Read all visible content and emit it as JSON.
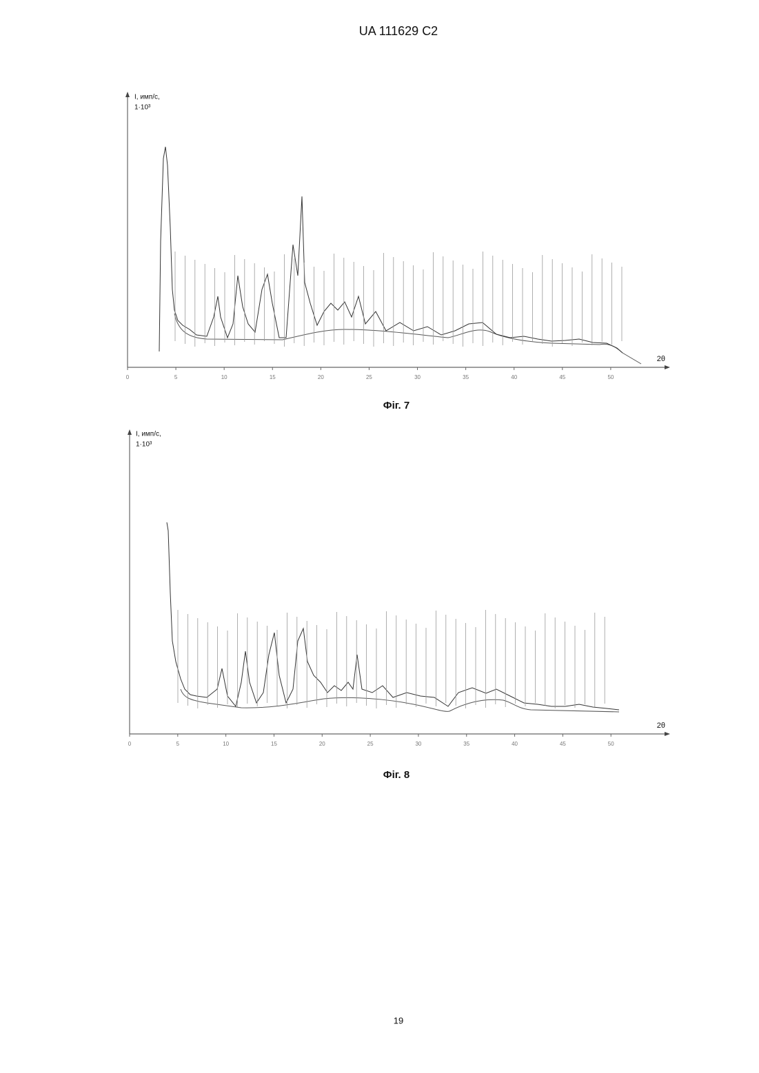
{
  "header": "UA   111629   C2",
  "figures": [
    {
      "chart_data": {
        "type": "line",
        "y_label": "I, имп/с,",
        "y_unit": "1·10³",
        "x_label": "2θ",
        "xlim": [
          0,
          56
        ],
        "xticks": [
          0,
          5,
          10,
          15,
          20,
          25,
          30,
          35,
          40,
          45,
          50
        ]
      },
      "caption": "Фіг. 7"
    },
    {
      "chart_data": {
        "type": "line",
        "y_label": "I, имп/с,",
        "y_unit": "1·10³",
        "x_label": "2θ",
        "xlim": [
          0,
          56
        ],
        "xticks": [
          0,
          5,
          10,
          15,
          20,
          25,
          30,
          35,
          40,
          45,
          50
        ]
      },
      "caption": "Фіг. 8"
    }
  ],
  "page_number": "19"
}
